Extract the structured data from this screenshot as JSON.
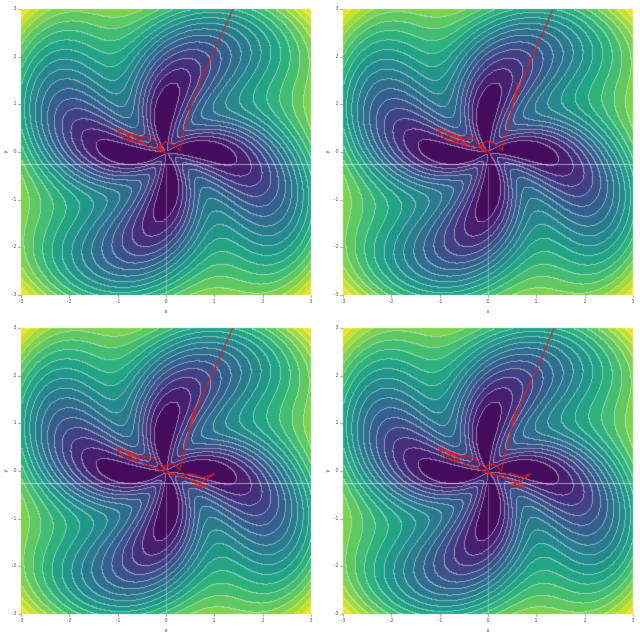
{
  "figure": {
    "background_color": "#ffffff",
    "layout": "2x2 grid of identical filled-contour optimization landscapes with red optimizer trajectories",
    "visible_text": [
      "-3",
      "-2",
      "-1",
      "0",
      "1",
      "2",
      "3",
      "x",
      "y"
    ]
  },
  "chart_data": {
    "type": "heatmap",
    "subtype": "filled contour (viridis) of a 4-petal pinwheel objective function with overlaid red optimizer trajectory, repeated in 4 nearly identical subplots",
    "title": "",
    "xlabel": "x",
    "ylabel": "y",
    "xlim": [
      -3,
      3
    ],
    "ylim": [
      -3,
      3
    ],
    "xticks": [
      -3,
      -2,
      -1,
      0,
      1,
      2,
      3
    ],
    "yticks": [
      -3,
      -2,
      -1,
      0,
      1,
      2,
      3
    ],
    "grid": false,
    "legend": "none",
    "colormap": "viridis",
    "colormap_stops": [
      [
        0.0,
        68,
        1,
        84
      ],
      [
        0.1,
        72,
        36,
        117
      ],
      [
        0.2,
        65,
        68,
        135
      ],
      [
        0.3,
        53,
        95,
        141
      ],
      [
        0.4,
        42,
        120,
        142
      ],
      [
        0.5,
        33,
        145,
        140
      ],
      [
        0.6,
        34,
        168,
        132
      ],
      [
        0.7,
        68,
        190,
        112
      ],
      [
        0.8,
        122,
        209,
        81
      ],
      [
        0.9,
        189,
        223,
        38
      ],
      [
        1.0,
        253,
        231,
        37
      ]
    ],
    "contour_bands": 18,
    "contour_line_color_rgba": [
      225,
      240,
      245,
      0.5
    ],
    "field": {
      "formula": "v(x,y) = 0.25*r + 0.10*r^2 + r^1.1 * exp(-0.7*r) * sin(4*theta + 1.05*r + 3.63)",
      "radial_linear": 0.25,
      "radial_quadratic": 0.1,
      "petal_count": 4,
      "twist": 1.05,
      "phase": 3.63,
      "amp_power": 1.1,
      "amp_decay": 0.7,
      "gamma": 1.15
    },
    "overlay_lines": [
      {
        "kind": "horizontal",
        "y": -0.25,
        "alpha": 0.55
      },
      {
        "kind": "vertical",
        "x": 0.0,
        "y_from": -0.3,
        "y_to": -3.0,
        "alpha": 0.3
      }
    ],
    "trajectory_color": "#e51c1c",
    "tick_color": "#888888",
    "label_color": "#555555",
    "panels": [
      {
        "name": "top-left",
        "trajectory": [
          [
            1.42,
            3.08
          ],
          [
            1.22,
            2.62
          ],
          [
            1.03,
            2.2
          ],
          [
            0.87,
            1.84
          ],
          [
            0.73,
            1.52
          ],
          [
            0.61,
            1.22
          ],
          [
            0.52,
            0.96
          ],
          [
            0.45,
            0.72
          ],
          [
            0.39,
            0.5
          ],
          [
            0.34,
            0.3
          ],
          [
            0.31,
            0.14
          ],
          [
            0.29,
            0.03
          ],
          [
            0.18,
            0.14
          ],
          [
            0.0,
            0.22
          ],
          [
            -0.15,
            0.1
          ],
          [
            -0.02,
            0.0
          ],
          [
            -0.28,
            0.3
          ],
          [
            -0.55,
            0.33
          ],
          [
            -0.8,
            0.4
          ],
          [
            -1.03,
            0.49
          ],
          [
            -0.87,
            0.28
          ],
          [
            -0.64,
            0.2
          ],
          [
            -0.9,
            0.44
          ],
          [
            -0.71,
            0.35
          ],
          [
            -0.47,
            0.15
          ],
          [
            -0.6,
            0.29
          ],
          [
            -0.36,
            0.1
          ],
          [
            -0.16,
            0.05
          ],
          [
            -0.03,
            0.0
          ],
          [
            0.04,
            -0.05
          ]
        ],
        "marker": [
          -0.71,
          0.35
        ]
      },
      {
        "name": "top-right",
        "trajectory": [
          [
            1.38,
            3.08
          ],
          [
            1.2,
            2.66
          ],
          [
            1.03,
            2.27
          ],
          [
            0.88,
            1.93
          ],
          [
            0.76,
            1.63
          ],
          [
            0.65,
            1.36
          ],
          [
            0.56,
            1.12
          ],
          [
            0.49,
            0.9
          ],
          [
            0.55,
            1.16
          ],
          [
            0.61,
            1.44
          ],
          [
            0.56,
            1.18
          ],
          [
            0.49,
            0.88
          ],
          [
            0.43,
            0.6
          ],
          [
            0.37,
            0.38
          ],
          [
            0.32,
            0.18
          ],
          [
            0.29,
            0.04
          ],
          [
            0.16,
            0.16
          ],
          [
            -0.02,
            0.24
          ],
          [
            -0.18,
            0.1
          ],
          [
            -0.04,
            -0.02
          ],
          [
            -0.3,
            0.28
          ],
          [
            -0.58,
            0.32
          ],
          [
            -0.84,
            0.42
          ],
          [
            -1.05,
            0.5
          ],
          [
            -0.9,
            0.27
          ],
          [
            -0.66,
            0.18
          ],
          [
            -0.92,
            0.46
          ],
          [
            -0.74,
            0.37
          ],
          [
            -0.52,
            0.28
          ],
          [
            -0.66,
            0.2
          ],
          [
            -0.44,
            0.12
          ],
          [
            -0.57,
            0.26
          ],
          [
            -0.3,
            0.07
          ],
          [
            -0.12,
            0.12
          ],
          [
            0.02,
            0.0
          ],
          [
            0.08,
            -0.08
          ]
        ],
        "marker": [
          -0.7,
          0.33
        ]
      },
      {
        "name": "bottom-left",
        "trajectory": [
          [
            1.42,
            3.08
          ],
          [
            1.22,
            2.63
          ],
          [
            1.04,
            2.22
          ],
          [
            0.88,
            1.86
          ],
          [
            0.74,
            1.54
          ],
          [
            0.63,
            1.27
          ],
          [
            0.54,
            1.03
          ],
          [
            0.47,
            0.82
          ],
          [
            0.53,
            1.05
          ],
          [
            0.58,
            1.32
          ],
          [
            0.52,
            1.05
          ],
          [
            0.46,
            0.78
          ],
          [
            0.4,
            0.54
          ],
          [
            0.35,
            0.32
          ],
          [
            0.31,
            0.12
          ],
          [
            0.28,
            0.02
          ],
          [
            0.14,
            0.16
          ],
          [
            -0.04,
            0.1
          ],
          [
            0.04,
            -0.02
          ],
          [
            -0.27,
            0.28
          ],
          [
            -0.54,
            0.31
          ],
          [
            -0.81,
            0.42
          ],
          [
            -1.04,
            0.5
          ],
          [
            -0.88,
            0.28
          ],
          [
            -0.62,
            0.2
          ],
          [
            -0.88,
            0.44
          ],
          [
            -0.68,
            0.34
          ],
          [
            -0.45,
            0.14
          ],
          [
            -0.21,
            0.06
          ],
          [
            -0.02,
            -0.03
          ],
          [
            0.24,
            -0.1
          ],
          [
            0.5,
            -0.06
          ],
          [
            0.76,
            -0.14
          ],
          [
            1.0,
            -0.06
          ],
          [
            0.8,
            -0.2
          ],
          [
            0.55,
            -0.3
          ],
          [
            0.88,
            -0.35
          ],
          [
            0.62,
            -0.22
          ],
          [
            0.34,
            -0.13
          ],
          [
            0.1,
            -0.05
          ],
          [
            0.0,
            0.02
          ]
        ],
        "marker": [
          -0.7,
          0.34
        ]
      },
      {
        "name": "bottom-right",
        "trajectory": [
          [
            1.4,
            3.08
          ],
          [
            1.21,
            2.62
          ],
          [
            1.03,
            2.2
          ],
          [
            0.87,
            1.85
          ],
          [
            0.73,
            1.53
          ],
          [
            0.62,
            1.26
          ],
          [
            0.53,
            1.02
          ],
          [
            0.46,
            0.8
          ],
          [
            0.52,
            1.02
          ],
          [
            0.57,
            1.28
          ],
          [
            0.51,
            1.0
          ],
          [
            0.45,
            0.74
          ],
          [
            0.39,
            0.5
          ],
          [
            0.34,
            0.28
          ],
          [
            0.3,
            0.1
          ],
          [
            0.28,
            0.0
          ],
          [
            0.13,
            0.15
          ],
          [
            -0.05,
            0.1
          ],
          [
            0.03,
            -0.03
          ],
          [
            -0.28,
            0.28
          ],
          [
            -0.56,
            0.32
          ],
          [
            -0.82,
            0.42
          ],
          [
            -1.03,
            0.49
          ],
          [
            -0.87,
            0.27
          ],
          [
            -0.63,
            0.19
          ],
          [
            -0.89,
            0.44
          ],
          [
            -0.69,
            0.33
          ],
          [
            -0.46,
            0.13
          ],
          [
            -0.22,
            0.05
          ],
          [
            -0.02,
            -0.04
          ],
          [
            0.24,
            -0.1
          ],
          [
            0.47,
            -0.05
          ],
          [
            0.7,
            -0.13
          ],
          [
            0.88,
            -0.06
          ],
          [
            0.68,
            -0.22
          ],
          [
            0.45,
            -0.3
          ],
          [
            0.76,
            -0.35
          ],
          [
            0.5,
            -0.2
          ],
          [
            0.26,
            -0.12
          ],
          [
            0.06,
            -0.04
          ]
        ],
        "marker": [
          -0.69,
          0.33
        ]
      }
    ]
  }
}
